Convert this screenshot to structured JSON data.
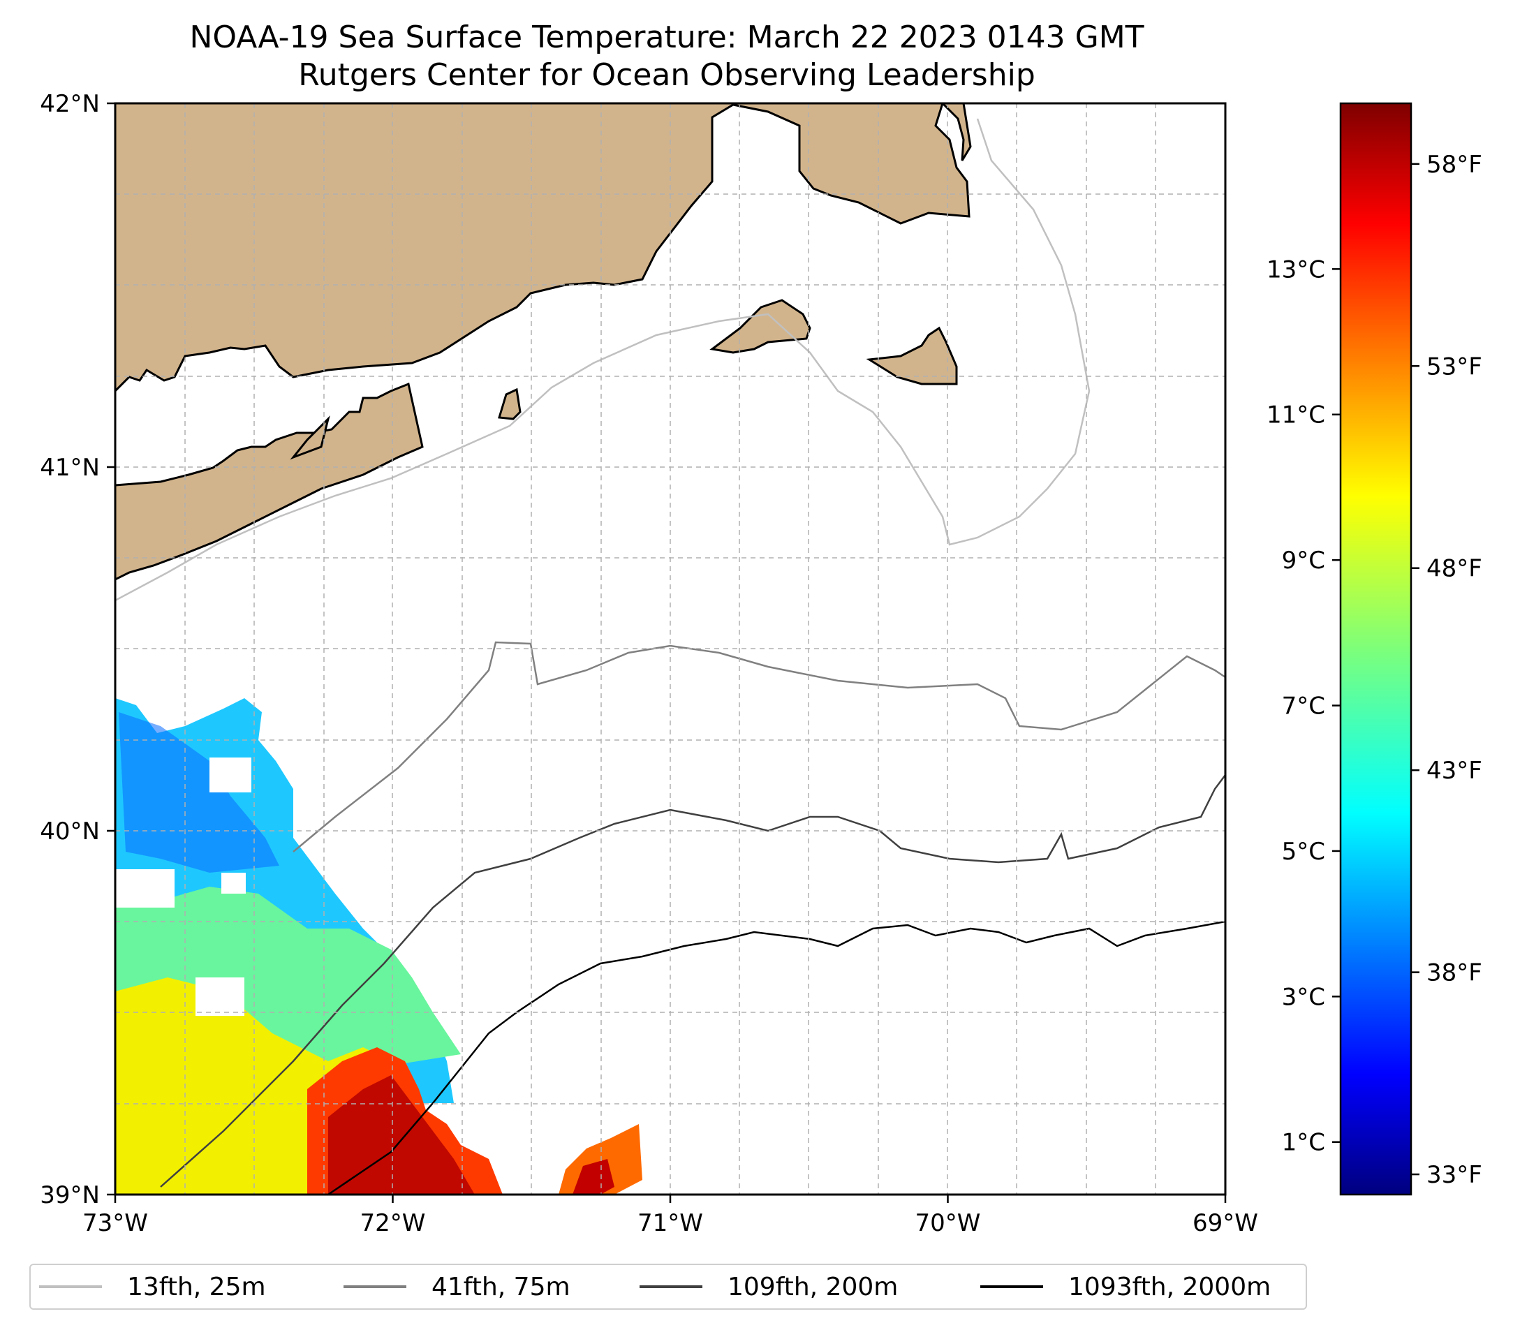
{
  "title_line1": "NOAA-19 Sea Surface Temperature: March 22 2023 0143 GMT",
  "title_line2": "Rutgers Center for Ocean Observing Leadership",
  "map": {
    "lon_range": [
      -73,
      -69
    ],
    "lat_range": [
      39,
      42
    ],
    "lon_ticks": [
      {
        "lon": -73,
        "label": "73°W"
      },
      {
        "lon": -72,
        "label": "72°W"
      },
      {
        "lon": -71,
        "label": "71°W"
      },
      {
        "lon": -70,
        "label": "70°W"
      },
      {
        "lon": -69,
        "label": "69°W"
      }
    ],
    "lat_ticks": [
      {
        "lat": 39,
        "label": "39°N"
      },
      {
        "lat": 40,
        "label": "40°N"
      },
      {
        "lat": 41,
        "label": "41°N"
      },
      {
        "lat": 42,
        "label": "42°N"
      }
    ],
    "grid": "dashed",
    "land_color": "#d2b48c",
    "ocean_color": "#ffffff"
  },
  "colorbar": {
    "colormap": "jet",
    "celsius_ticks": [
      {
        "value": 1,
        "label": "1°C"
      },
      {
        "value": 3,
        "label": "3°C"
      },
      {
        "value": 5,
        "label": "5°C"
      },
      {
        "value": 7,
        "label": "7°C"
      },
      {
        "value": 9,
        "label": "9°C"
      },
      {
        "value": 11,
        "label": "11°C"
      },
      {
        "value": 13,
        "label": "13°C"
      }
    ],
    "fahrenheit_ticks": [
      {
        "value": 33,
        "label": "33°F"
      },
      {
        "value": 38,
        "label": "38°F"
      },
      {
        "value": 43,
        "label": "43°F"
      },
      {
        "value": 48,
        "label": "48°F"
      },
      {
        "value": 53,
        "label": "53°F"
      },
      {
        "value": 58,
        "label": "58°F"
      }
    ]
  },
  "legend": [
    {
      "label": "13fth, 25m",
      "color": "#c0c0c0"
    },
    {
      "label": "41fth, 75m",
      "color": "#808080"
    },
    {
      "label": "109fth, 200m",
      "color": "#404040"
    },
    {
      "label": "1093fth, 2000m",
      "color": "#000000"
    }
  ]
}
